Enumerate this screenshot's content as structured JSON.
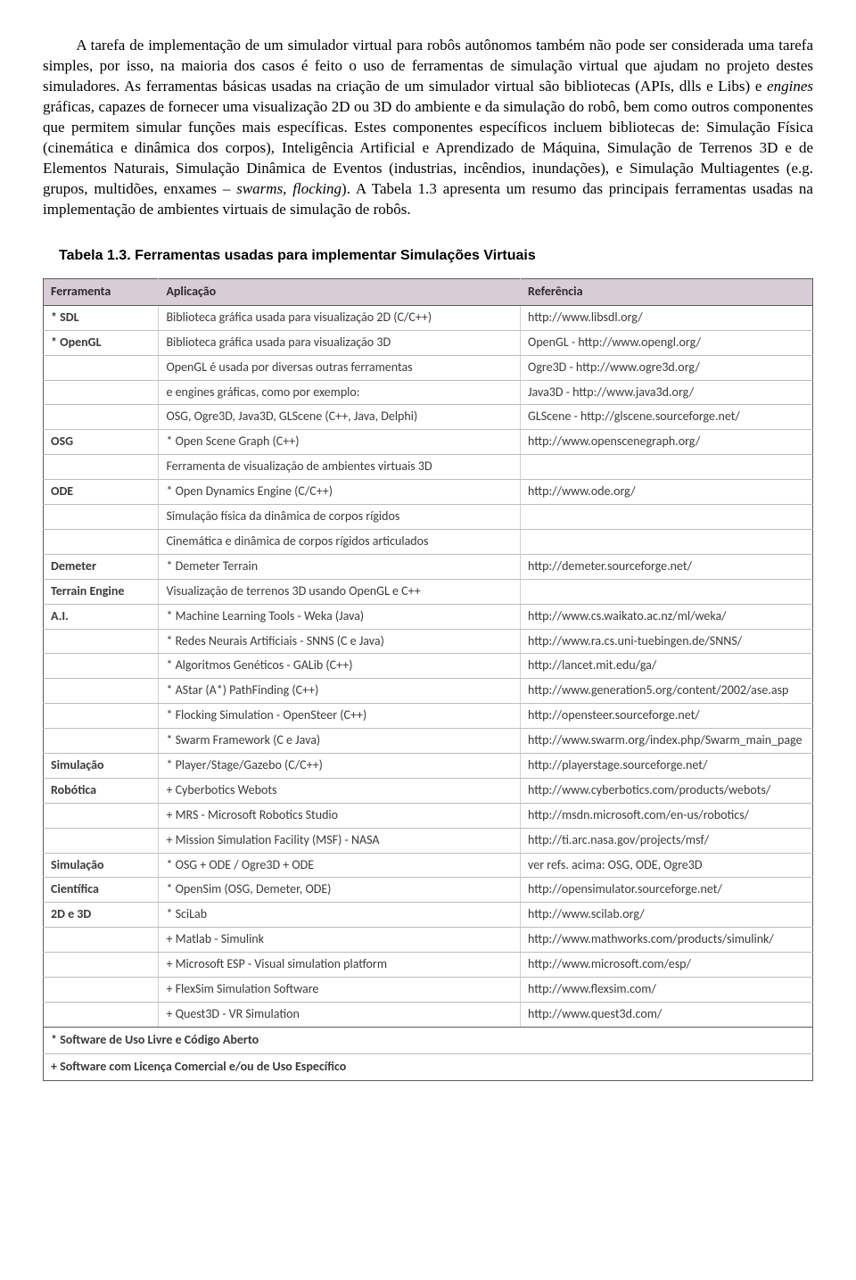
{
  "paragraph_html": "A tarefa de implementação de um simulador virtual para robôs autônomos também não pode ser considerada uma tarefa simples, por isso, na maioria dos casos é feito o uso de ferramentas de simulação virtual que ajudam no projeto destes simuladores. As ferramentas básicas usadas na criação de um simulador virtual são bibliotecas (APIs, dlls e Libs) e <span class=\"italic\">engines</span> gráficas, capazes de fornecer uma visualização 2D ou 3D do ambiente e da simulação do robô, bem como outros componentes que permitem simular funções mais específicas. Estes componentes específicos incluem bibliotecas de: Simulação Física (cinemática e dinâmica dos corpos), Inteligência Artificial e Aprendizado de Máquina, Simulação de Terrenos 3D e de Elementos Naturais, Simulação Dinâmica de Eventos (industrias, incêndios, inundações), e Simulação Multiagentes (e.g. grupos, multidões, enxames – <span class=\"italic\">swarms, flocking</span>). A Tabela 1.3 apresenta um resumo das principais ferramentas usadas na implementação de ambientes virtuais de simulação de robôs.",
  "table_caption": "Tabela 1.3. Ferramentas usadas para implementar Simulações Virtuais",
  "table": {
    "columns": [
      "Ferramenta",
      "Aplicação",
      "Referência"
    ],
    "col_widths": [
      "15%",
      "47%",
      "38%"
    ],
    "header_bg": "#d7ccd7",
    "border_color_outer": "#5a5a5a",
    "border_color_inner": "#bdbdbd",
    "font_family": "Segoe UI",
    "font_size_pt": 10.5,
    "rows": [
      [
        "* SDL",
        "Biblioteca gráfica usada para visualização 2D  (C/C++)",
        "http://www.libsdl.org/"
      ],
      [
        "* OpenGL",
        "Biblioteca gráfica usada para visualização 3D",
        "OpenGL - http://www.opengl.org/"
      ],
      [
        "",
        "OpenGL é usada por diversas outras ferramentas",
        "Ogre3D - http://www.ogre3d.org/"
      ],
      [
        "",
        "e engines gráficas, como por exemplo:",
        "Java3D - http://www.java3d.org/"
      ],
      [
        "",
        "OSG, Ogre3D, Java3D, GLScene (C++, Java, Delphi)",
        "GLScene - http://glscene.sourceforge.net/"
      ],
      [
        "OSG",
        "* Open Scene Graph (C++)",
        "http://www.openscenegraph.org/"
      ],
      [
        "",
        "Ferramenta de visualização de ambientes virtuais 3D",
        ""
      ],
      [
        "ODE",
        "* Open Dynamics Engine (C/C++)",
        "http://www.ode.org/"
      ],
      [
        "",
        "Simulação física da dinâmica de corpos rígidos",
        ""
      ],
      [
        "",
        "Cinemática e dinâmica de corpos rígidos articulados",
        ""
      ],
      [
        "Demeter",
        "* Demeter Terrain",
        "http://demeter.sourceforge.net/"
      ],
      [
        "Terrain Engine",
        "Visualização de terrenos 3D usando OpenGL e C++",
        ""
      ],
      [
        "A.I.",
        "* Machine Learning Tools - Weka (Java)",
        "http://www.cs.waikato.ac.nz/ml/weka/"
      ],
      [
        "",
        "* Redes Neurais Artificiais - SNNS (C e Java)",
        "http://www.ra.cs.uni-tuebingen.de/SNNS/"
      ],
      [
        "",
        "* Algoritmos Genéticos - GALib (C++)",
        "http://lancet.mit.edu/ga/"
      ],
      [
        "",
        "* AStar (A*) PathFinding (C++)",
        "http://www.generation5.org/content/2002/ase.asp"
      ],
      [
        "",
        "* Flocking Simulation - OpenSteer (C++)",
        "http://opensteer.sourceforge.net/"
      ],
      [
        "",
        "* Swarm Framework (C e Java)",
        "http://www.swarm.org/index.php/Swarm_main_page"
      ],
      [
        "Simulação",
        "* Player/Stage/Gazebo (C/C++)",
        "http://playerstage.sourceforge.net/"
      ],
      [
        "Robótica",
        "+ Cyberbotics Webots",
        "http://www.cyberbotics.com/products/webots/"
      ],
      [
        "",
        "+ MRS - Microsoft Robotics Studio",
        "http://msdn.microsoft.com/en-us/robotics/"
      ],
      [
        "",
        "+ Mission Simulation Facility (MSF) - NASA",
        "http://ti.arc.nasa.gov/projects/msf/"
      ],
      [
        "Simulação",
        "* OSG + ODE  /  Ogre3D + ODE",
        "ver refs. acima: OSG, ODE, Ogre3D"
      ],
      [
        "Científica",
        "* OpenSim (OSG, Demeter, ODE)",
        "http://opensimulator.sourceforge.net/"
      ],
      [
        "2D e 3D",
        "* SciLab",
        "http://www.scilab.org/"
      ],
      [
        "",
        "+ Matlab - Simulink",
        "http://www.mathworks.com/products/simulink/"
      ],
      [
        "",
        "+ Microsoft ESP - Visual simulation platform",
        "http://www.microsoft.com/esp/"
      ],
      [
        "",
        "+ FlexSim Simulation Software",
        "http://www.flexsim.com/"
      ],
      [
        "",
        "+ Quest3D - VR Simulation",
        "http://www.quest3d.com/"
      ]
    ],
    "footer": [
      "* Software de Uso Livre e Código Aberto",
      "+ Software com Licença Comercial e/ou de Uso Específico"
    ]
  }
}
